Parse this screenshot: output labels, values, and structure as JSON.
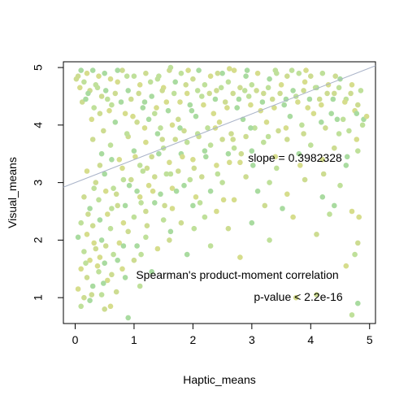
{
  "chart_data": {
    "type": "scatter",
    "title": "",
    "xlabel": "Haptic_means",
    "ylabel": "Visual_means",
    "xlim": [
      -0.2,
      5.1
    ],
    "ylim": [
      0.55,
      5.1
    ],
    "x_ticks": [
      0,
      1,
      2,
      3,
      4,
      5
    ],
    "y_ticks": [
      1,
      2,
      3,
      4,
      5
    ],
    "grid": false,
    "legend": "none",
    "point_colors": [
      "#cddc91",
      "#a9dba0",
      "#bfe09a",
      "#d6dd8c"
    ],
    "regression_line": {
      "intercept": 3.0,
      "slope": 0.3982328,
      "color": "#a9b3c8"
    },
    "annotations": {
      "slope": "slope = 0.3982328",
      "method": "Spearman's product-moment correlation",
      "pvalue": "p-value < 2.2e-16"
    },
    "points": [
      [
        0.05,
        4.85
      ],
      [
        0.1,
        4.95
      ],
      [
        0.15,
        4.75
      ],
      [
        0.2,
        4.9
      ],
      [
        0.25,
        4.6
      ],
      [
        0.3,
        4.95
      ],
      [
        0.35,
        4.7
      ],
      [
        0.4,
        4.85
      ],
      [
        0.45,
        4.5
      ],
      [
        0.5,
        4.9
      ],
      [
        0.55,
        4.45
      ],
      [
        0.6,
        4.8
      ],
      [
        0.12,
        4.4
      ],
      [
        0.22,
        4.55
      ],
      [
        0.32,
        4.3
      ],
      [
        0.08,
        4.65
      ],
      [
        0.42,
        4.2
      ],
      [
        0.52,
        4.6
      ],
      [
        0.62,
        4.35
      ],
      [
        0.72,
        4.75
      ],
      [
        0.8,
        4.95
      ],
      [
        0.9,
        4.6
      ],
      [
        1.0,
        4.85
      ],
      [
        1.1,
        4.7
      ],
      [
        1.2,
        4.9
      ],
      [
        1.3,
        4.5
      ],
      [
        1.4,
        4.8
      ],
      [
        1.5,
        4.65
      ],
      [
        1.6,
        4.95
      ],
      [
        1.7,
        4.75
      ],
      [
        1.8,
        4.9
      ],
      [
        1.9,
        4.55
      ],
      [
        2.0,
        4.8
      ],
      [
        2.1,
        4.95
      ],
      [
        2.2,
        4.7
      ],
      [
        2.3,
        4.85
      ],
      [
        2.4,
        4.6
      ],
      [
        2.5,
        4.9
      ],
      [
        2.6,
        4.75
      ],
      [
        2.7,
        4.95
      ],
      [
        2.8,
        4.65
      ],
      [
        2.9,
        4.85
      ],
      [
        3.0,
        4.7
      ],
      [
        3.1,
        4.9
      ],
      [
        3.2,
        4.55
      ],
      [
        3.3,
        4.8
      ],
      [
        3.4,
        4.95
      ],
      [
        3.5,
        4.7
      ],
      [
        3.6,
        4.85
      ],
      [
        3.7,
        4.6
      ],
      [
        3.8,
        4.9
      ],
      [
        3.9,
        4.75
      ],
      [
        4.0,
        4.85
      ],
      [
        4.1,
        4.65
      ],
      [
        4.2,
        4.9
      ],
      [
        4.3,
        4.7
      ],
      [
        4.4,
        4.55
      ],
      [
        4.5,
        4.8
      ],
      [
        4.6,
        4.45
      ],
      [
        4.7,
        4.7
      ],
      [
        4.8,
        4.35
      ],
      [
        4.9,
        4.1
      ],
      [
        4.85,
        4.6
      ],
      [
        4.75,
        4.25
      ],
      [
        0.95,
        4.45
      ],
      [
        1.15,
        4.3
      ],
      [
        1.35,
        4.2
      ],
      [
        1.55,
        4.4
      ],
      [
        1.75,
        4.1
      ],
      [
        1.95,
        4.35
      ],
      [
        2.15,
        4.5
      ],
      [
        2.35,
        4.2
      ],
      [
        2.55,
        4.4
      ],
      [
        2.75,
        4.3
      ],
      [
        2.95,
        4.5
      ],
      [
        3.15,
        4.25
      ],
      [
        3.35,
        4.45
      ],
      [
        3.55,
        4.35
      ],
      [
        3.75,
        4.5
      ],
      [
        3.95,
        4.3
      ],
      [
        4.15,
        4.45
      ],
      [
        4.35,
        4.2
      ],
      [
        4.55,
        4.1
      ],
      [
        0.85,
        4.2
      ],
      [
        1.05,
        4.05
      ],
      [
        1.25,
        4.1
      ],
      [
        1.45,
        3.95
      ],
      [
        1.65,
        4.0
      ],
      [
        1.85,
        3.9
      ],
      [
        2.05,
        4.15
      ],
      [
        2.25,
        3.95
      ],
      [
        2.45,
        4.05
      ],
      [
        2.65,
        3.85
      ],
      [
        2.85,
        4.1
      ],
      [
        3.05,
        3.95
      ],
      [
        3.25,
        4.05
      ],
      [
        3.45,
        3.9
      ],
      [
        3.65,
        4.15
      ],
      [
        3.85,
        4.0
      ],
      [
        4.05,
        4.2
      ],
      [
        4.25,
        3.95
      ],
      [
        4.45,
        4.1
      ],
      [
        4.65,
        3.9
      ],
      [
        4.95,
        4.15
      ],
      [
        0.3,
        3.75
      ],
      [
        0.45,
        3.5
      ],
      [
        0.6,
        3.65
      ],
      [
        0.75,
        3.4
      ],
      [
        0.9,
        3.8
      ],
      [
        1.0,
        3.55
      ],
      [
        1.1,
        3.3
      ],
      [
        1.2,
        3.7
      ],
      [
        1.3,
        3.45
      ],
      [
        1.4,
        3.85
      ],
      [
        1.5,
        3.6
      ],
      [
        1.6,
        3.35
      ],
      [
        1.7,
        3.75
      ],
      [
        1.8,
        3.5
      ],
      [
        1.9,
        3.7
      ],
      [
        2.0,
        3.4
      ],
      [
        2.1,
        3.8
      ],
      [
        2.2,
        3.55
      ],
      [
        2.3,
        3.65
      ],
      [
        2.4,
        3.3
      ],
      [
        2.5,
        3.75
      ],
      [
        2.6,
        3.5
      ],
      [
        2.7,
        3.6
      ],
      [
        2.8,
        3.35
      ],
      [
        2.9,
        3.8
      ],
      [
        3.0,
        3.55
      ],
      [
        3.2,
        3.7
      ],
      [
        3.4,
        3.45
      ],
      [
        3.6,
        3.75
      ],
      [
        3.8,
        3.5
      ],
      [
        4.0,
        3.65
      ],
      [
        4.2,
        3.4
      ],
      [
        4.4,
        3.6
      ],
      [
        4.6,
        3.3
      ],
      [
        4.8,
        3.55
      ],
      [
        0.2,
        3.2
      ],
      [
        0.35,
        3.0
      ],
      [
        0.5,
        3.15
      ],
      [
        0.65,
        2.9
      ],
      [
        0.8,
        3.25
      ],
      [
        0.95,
        3.05
      ],
      [
        1.05,
        2.85
      ],
      [
        1.15,
        3.2
      ],
      [
        1.25,
        2.95
      ],
      [
        1.35,
        3.1
      ],
      [
        1.45,
        2.8
      ],
      [
        1.55,
        3.15
      ],
      [
        1.65,
        2.9
      ],
      [
        1.75,
        3.2
      ],
      [
        1.85,
        2.95
      ],
      [
        1.95,
        3.05
      ],
      [
        2.05,
        2.75
      ],
      [
        2.15,
        3.1
      ],
      [
        2.3,
        2.85
      ],
      [
        2.5,
        3.0
      ],
      [
        2.7,
        2.7
      ],
      [
        2.9,
        3.1
      ],
      [
        3.1,
        2.85
      ],
      [
        3.3,
        3.0
      ],
      [
        3.6,
        2.8
      ],
      [
        3.9,
        3.05
      ],
      [
        4.2,
        2.75
      ],
      [
        4.5,
        2.95
      ],
      [
        4.7,
        2.5
      ],
      [
        0.15,
        2.75
      ],
      [
        0.25,
        2.55
      ],
      [
        0.4,
        2.7
      ],
      [
        0.55,
        2.45
      ],
      [
        0.7,
        2.8
      ],
      [
        0.85,
        2.6
      ],
      [
        1.0,
        2.4
      ],
      [
        1.1,
        2.75
      ],
      [
        1.2,
        2.5
      ],
      [
        1.35,
        2.65
      ],
      [
        1.5,
        2.35
      ],
      [
        1.65,
        2.55
      ],
      [
        1.8,
        2.3
      ],
      [
        2.0,
        2.6
      ],
      [
        2.2,
        2.4
      ],
      [
        2.4,
        2.5
      ],
      [
        2.6,
        2.2
      ],
      [
        3.0,
        2.3
      ],
      [
        3.3,
        2.0
      ],
      [
        3.7,
        2.4
      ],
      [
        4.1,
        2.1
      ],
      [
        4.4,
        2.6
      ],
      [
        0.1,
        2.3
      ],
      [
        0.2,
        2.1
      ],
      [
        0.3,
        2.25
      ],
      [
        0.45,
        2.0
      ],
      [
        0.6,
        2.2
      ],
      [
        0.75,
        1.95
      ],
      [
        0.9,
        2.15
      ],
      [
        1.05,
        1.9
      ],
      [
        1.2,
        2.05
      ],
      [
        1.4,
        1.85
      ],
      [
        1.6,
        2.0
      ],
      [
        1.9,
        1.75
      ],
      [
        2.3,
        1.9
      ],
      [
        2.8,
        1.7
      ],
      [
        4.8,
        1.95
      ],
      [
        0.05,
        2.05
      ],
      [
        0.15,
        1.8
      ],
      [
        0.25,
        1.65
      ],
      [
        0.35,
        1.85
      ],
      [
        0.5,
        1.6
      ],
      [
        0.65,
        1.75
      ],
      [
        0.8,
        1.5
      ],
      [
        1.0,
        1.65
      ],
      [
        1.3,
        1.45
      ],
      [
        4.75,
        1.75
      ],
      [
        0.1,
        1.5
      ],
      [
        0.2,
        1.35
      ],
      [
        0.3,
        1.2
      ],
      [
        0.4,
        1.45
      ],
      [
        0.55,
        1.3
      ],
      [
        0.7,
        1.1
      ],
      [
        0.85,
        1.35
      ],
      [
        1.1,
        1.2
      ],
      [
        0.05,
        1.15
      ],
      [
        0.15,
        1.0
      ],
      [
        0.25,
        0.95
      ],
      [
        0.45,
        1.05
      ],
      [
        0.6,
        0.85
      ],
      [
        0.5,
        0.8
      ],
      [
        0.9,
        0.65
      ],
      [
        0.1,
        0.85
      ],
      [
        3.75,
        1.0
      ],
      [
        4.1,
        1.05
      ],
      [
        4.8,
        0.9
      ],
      [
        4.7,
        0.7
      ],
      [
        4.6,
        1.55
      ],
      [
        0.02,
        4.8
      ],
      [
        0.18,
        4.45
      ],
      [
        0.38,
        4.65
      ],
      [
        0.58,
        4.25
      ],
      [
        0.68,
        4.55
      ],
      [
        0.78,
        4.4
      ],
      [
        0.88,
        4.85
      ],
      [
        0.98,
        4.15
      ],
      [
        1.08,
        4.55
      ],
      [
        1.18,
        4.4
      ],
      [
        1.28,
        4.75
      ],
      [
        1.38,
        4.3
      ],
      [
        1.48,
        4.6
      ],
      [
        1.58,
        4.25
      ],
      [
        1.68,
        4.55
      ],
      [
        1.78,
        4.4
      ],
      [
        1.88,
        4.7
      ],
      [
        1.98,
        4.25
      ],
      [
        2.08,
        4.6
      ],
      [
        2.18,
        4.35
      ],
      [
        2.28,
        4.55
      ],
      [
        2.38,
        4.45
      ],
      [
        2.48,
        4.65
      ],
      [
        2.58,
        4.3
      ],
      [
        2.68,
        4.55
      ],
      [
        2.78,
        4.45
      ],
      [
        2.88,
        4.6
      ],
      [
        2.98,
        4.35
      ],
      [
        3.08,
        4.6
      ],
      [
        3.18,
        4.4
      ],
      [
        3.28,
        4.65
      ],
      [
        3.38,
        4.3
      ],
      [
        3.48,
        4.55
      ],
      [
        3.58,
        4.45
      ],
      [
        3.68,
        4.95
      ],
      [
        3.78,
        4.4
      ],
      [
        3.88,
        4.6
      ],
      [
        3.98,
        4.45
      ],
      [
        4.08,
        4.65
      ],
      [
        4.18,
        4.35
      ],
      [
        4.28,
        4.55
      ],
      [
        4.38,
        4.45
      ],
      [
        4.48,
        4.65
      ],
      [
        4.58,
        4.4
      ],
      [
        4.68,
        4.55
      ],
      [
        4.78,
        4.2
      ],
      [
        4.88,
        4.0
      ],
      [
        0.28,
        4.1
      ],
      [
        0.48,
        3.9
      ],
      [
        0.68,
        4.05
      ],
      [
        0.88,
        3.85
      ],
      [
        1.18,
        3.95
      ],
      [
        1.48,
        3.75
      ],
      [
        1.78,
        3.95
      ],
      [
        2.08,
        3.85
      ],
      [
        2.38,
        3.95
      ],
      [
        2.68,
        3.75
      ],
      [
        2.98,
        3.95
      ],
      [
        3.28,
        3.8
      ],
      [
        3.58,
        3.95
      ],
      [
        3.88,
        3.85
      ],
      [
        4.18,
        4.05
      ],
      [
        4.48,
        3.85
      ],
      [
        4.78,
        3.75
      ],
      [
        0.42,
        3.3
      ],
      [
        0.62,
        3.4
      ],
      [
        0.82,
        3.05
      ],
      [
        1.02,
        3.45
      ],
      [
        1.22,
        3.25
      ],
      [
        1.42,
        3.5
      ],
      [
        1.62,
        3.15
      ],
      [
        1.82,
        3.45
      ],
      [
        2.02,
        3.25
      ],
      [
        2.22,
        3.45
      ],
      [
        2.42,
        3.15
      ],
      [
        2.62,
        3.35
      ],
      [
        2.82,
        3.5
      ],
      [
        3.02,
        3.3
      ],
      [
        3.42,
        3.25
      ],
      [
        3.82,
        3.3
      ],
      [
        4.22,
        3.15
      ],
      [
        4.62,
        3.45
      ],
      [
        0.32,
        2.9
      ],
      [
        0.52,
        2.85
      ],
      [
        0.72,
        2.6
      ],
      [
        0.92,
        2.95
      ],
      [
        1.12,
        2.65
      ],
      [
        1.32,
        2.85
      ],
      [
        1.52,
        2.6
      ],
      [
        1.72,
        2.85
      ],
      [
        2.12,
        2.65
      ],
      [
        2.52,
        2.7
      ],
      [
        3.22,
        2.6
      ],
      [
        3.52,
        2.55
      ],
      [
        4.32,
        2.45
      ],
      [
        4.82,
        2.4
      ],
      [
        0.22,
        2.45
      ],
      [
        0.42,
        2.35
      ],
      [
        0.62,
        2.55
      ],
      [
        0.82,
        2.3
      ],
      [
        1.22,
        2.25
      ],
      [
        1.62,
        2.15
      ],
      [
        2.02,
        2.2
      ],
      [
        0.32,
        1.95
      ],
      [
        0.52,
        1.9
      ],
      [
        0.72,
        1.65
      ],
      [
        1.12,
        1.75
      ],
      [
        0.42,
        1.7
      ],
      [
        0.62,
        1.4
      ],
      [
        0.82,
        1.9
      ],
      [
        0.18,
        1.6
      ],
      [
        0.38,
        1.55
      ],
      [
        0.28,
        1.05
      ],
      [
        0.48,
        1.25
      ],
      [
        1.42,
        4.85
      ],
      [
        1.92,
        4.95
      ],
      [
        2.42,
        4.9
      ],
      [
        2.92,
        4.95
      ],
      [
        3.42,
        4.9
      ],
      [
        3.92,
        4.95
      ],
      [
        4.42,
        4.85
      ],
      [
        0.72,
        4.95
      ],
      [
        1.62,
        5.0
      ],
      [
        2.62,
        4.98
      ]
    ]
  }
}
